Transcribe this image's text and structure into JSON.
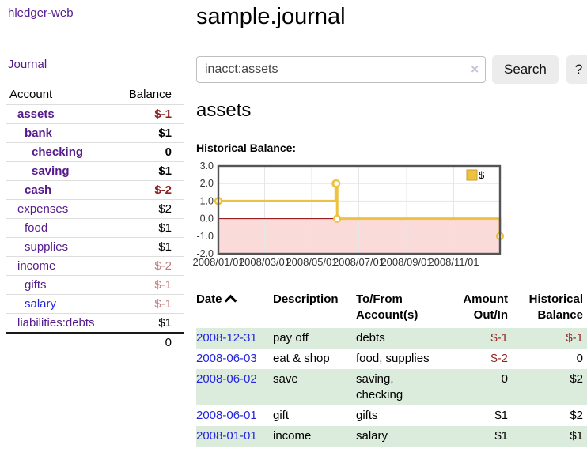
{
  "app_title": "hledger-web",
  "sidebar": {
    "journal_link": "Journal",
    "accounts_table": {
      "account_header": "Account",
      "balance_header": "Balance",
      "rows": [
        {
          "name": "assets",
          "balance": "$-1",
          "level": 1,
          "bold": true,
          "balance_color": "neg-strong",
          "link_color": "purple"
        },
        {
          "name": "bank",
          "balance": "$1",
          "level": 2,
          "bold": true,
          "balance_color": "normal",
          "link_color": "purple"
        },
        {
          "name": "checking",
          "balance": "0",
          "level": 3,
          "bold": true,
          "balance_color": "normal",
          "link_color": "purple"
        },
        {
          "name": "saving",
          "balance": "$1",
          "level": 3,
          "bold": true,
          "balance_color": "normal",
          "link_color": "purple"
        },
        {
          "name": "cash",
          "balance": "$-2",
          "level": 2,
          "bold": true,
          "balance_color": "neg-strong",
          "link_color": "purple"
        },
        {
          "name": "expenses",
          "balance": "$2",
          "level": 1,
          "bold": false,
          "balance_color": "normal",
          "link_color": "purple"
        },
        {
          "name": "food",
          "balance": "$1",
          "level": 2,
          "bold": false,
          "balance_color": "normal",
          "link_color": "purple"
        },
        {
          "name": "supplies",
          "balance": "$1",
          "level": 2,
          "bold": false,
          "balance_color": "normal",
          "link_color": "purple"
        },
        {
          "name": "income",
          "balance": "$-2",
          "level": 1,
          "bold": false,
          "balance_color": "neg-light",
          "link_color": "purple"
        },
        {
          "name": "gifts",
          "balance": "$-1",
          "level": 2,
          "bold": false,
          "balance_color": "neg-light",
          "link_color": "purple"
        },
        {
          "name": "salary",
          "balance": "$-1",
          "level": 2,
          "bold": false,
          "balance_color": "neg-light",
          "link_color": "blue"
        },
        {
          "name": "liabilities:debts",
          "balance": "$1",
          "level": 1,
          "bold": false,
          "balance_color": "normal",
          "link_color": "purple"
        }
      ],
      "total": "0"
    }
  },
  "main": {
    "page_title": "sample.journal",
    "search": {
      "value": "inacct:assets",
      "clear_icon": "×",
      "search_button": "Search",
      "help_button": "?"
    },
    "account_heading": "assets",
    "chart_label": "Historical Balance:"
  },
  "chart_data": {
    "type": "line",
    "step": true,
    "series": [
      {
        "name": "$",
        "color": "#edc240",
        "points": [
          [
            "2008-01-01",
            1
          ],
          [
            "2008-06-01",
            2
          ],
          [
            "2008-06-02",
            2
          ],
          [
            "2008-06-03",
            0
          ],
          [
            "2008-12-31",
            -1
          ]
        ]
      }
    ],
    "x_ticks": [
      "2008/01/01",
      "2008/03/01",
      "2008/05/01",
      "2008/07/01",
      "2008/09/01",
      "2008/11/01"
    ],
    "y_ticks": [
      3.0,
      2.0,
      1.0,
      0.0,
      -1.0,
      -2.0
    ],
    "ylim": [
      -2,
      3
    ],
    "xlim": [
      "2008-01-01",
      "2008-12-31"
    ],
    "grid": true,
    "legend_position": "top-right",
    "negative_region_fill": "#fbdada",
    "zero_line_color": "#8b0000",
    "border_color": "#545454",
    "gridline_color": "#e6e6e6",
    "marker_fill": "#ffffff"
  },
  "register": {
    "headers": {
      "date": "Date",
      "description": "Description",
      "accounts": "To/From Account(s)",
      "amount": "Amount Out/In",
      "balance": "Historical Balance"
    },
    "rows": [
      {
        "date": "2008-12-31",
        "description": "pay off",
        "accounts": [
          "debts"
        ],
        "amount": "$-1",
        "balance": "$-1",
        "amount_neg": true,
        "balance_neg": true,
        "shaded": true
      },
      {
        "date": "2008-06-03",
        "description": "eat & shop",
        "accounts": [
          "food",
          "supplies"
        ],
        "amount": "$-2",
        "balance": "0",
        "amount_neg": true,
        "balance_neg": false,
        "shaded": false
      },
      {
        "date": "2008-06-02",
        "description": "save",
        "accounts": [
          "saving",
          "checking"
        ],
        "amount": "0",
        "balance": "$2",
        "amount_neg": false,
        "balance_neg": false,
        "shaded": true
      },
      {
        "date": "2008-06-01",
        "description": "gift",
        "accounts": [
          "gifts"
        ],
        "amount": "$1",
        "balance": "$2",
        "amount_neg": false,
        "balance_neg": false,
        "shaded": false
      },
      {
        "date": "2008-01-01",
        "description": "income",
        "accounts": [
          "salary"
        ],
        "amount": "$1",
        "balance": "$1",
        "amount_neg": false,
        "balance_neg": false,
        "shaded": true
      }
    ]
  }
}
